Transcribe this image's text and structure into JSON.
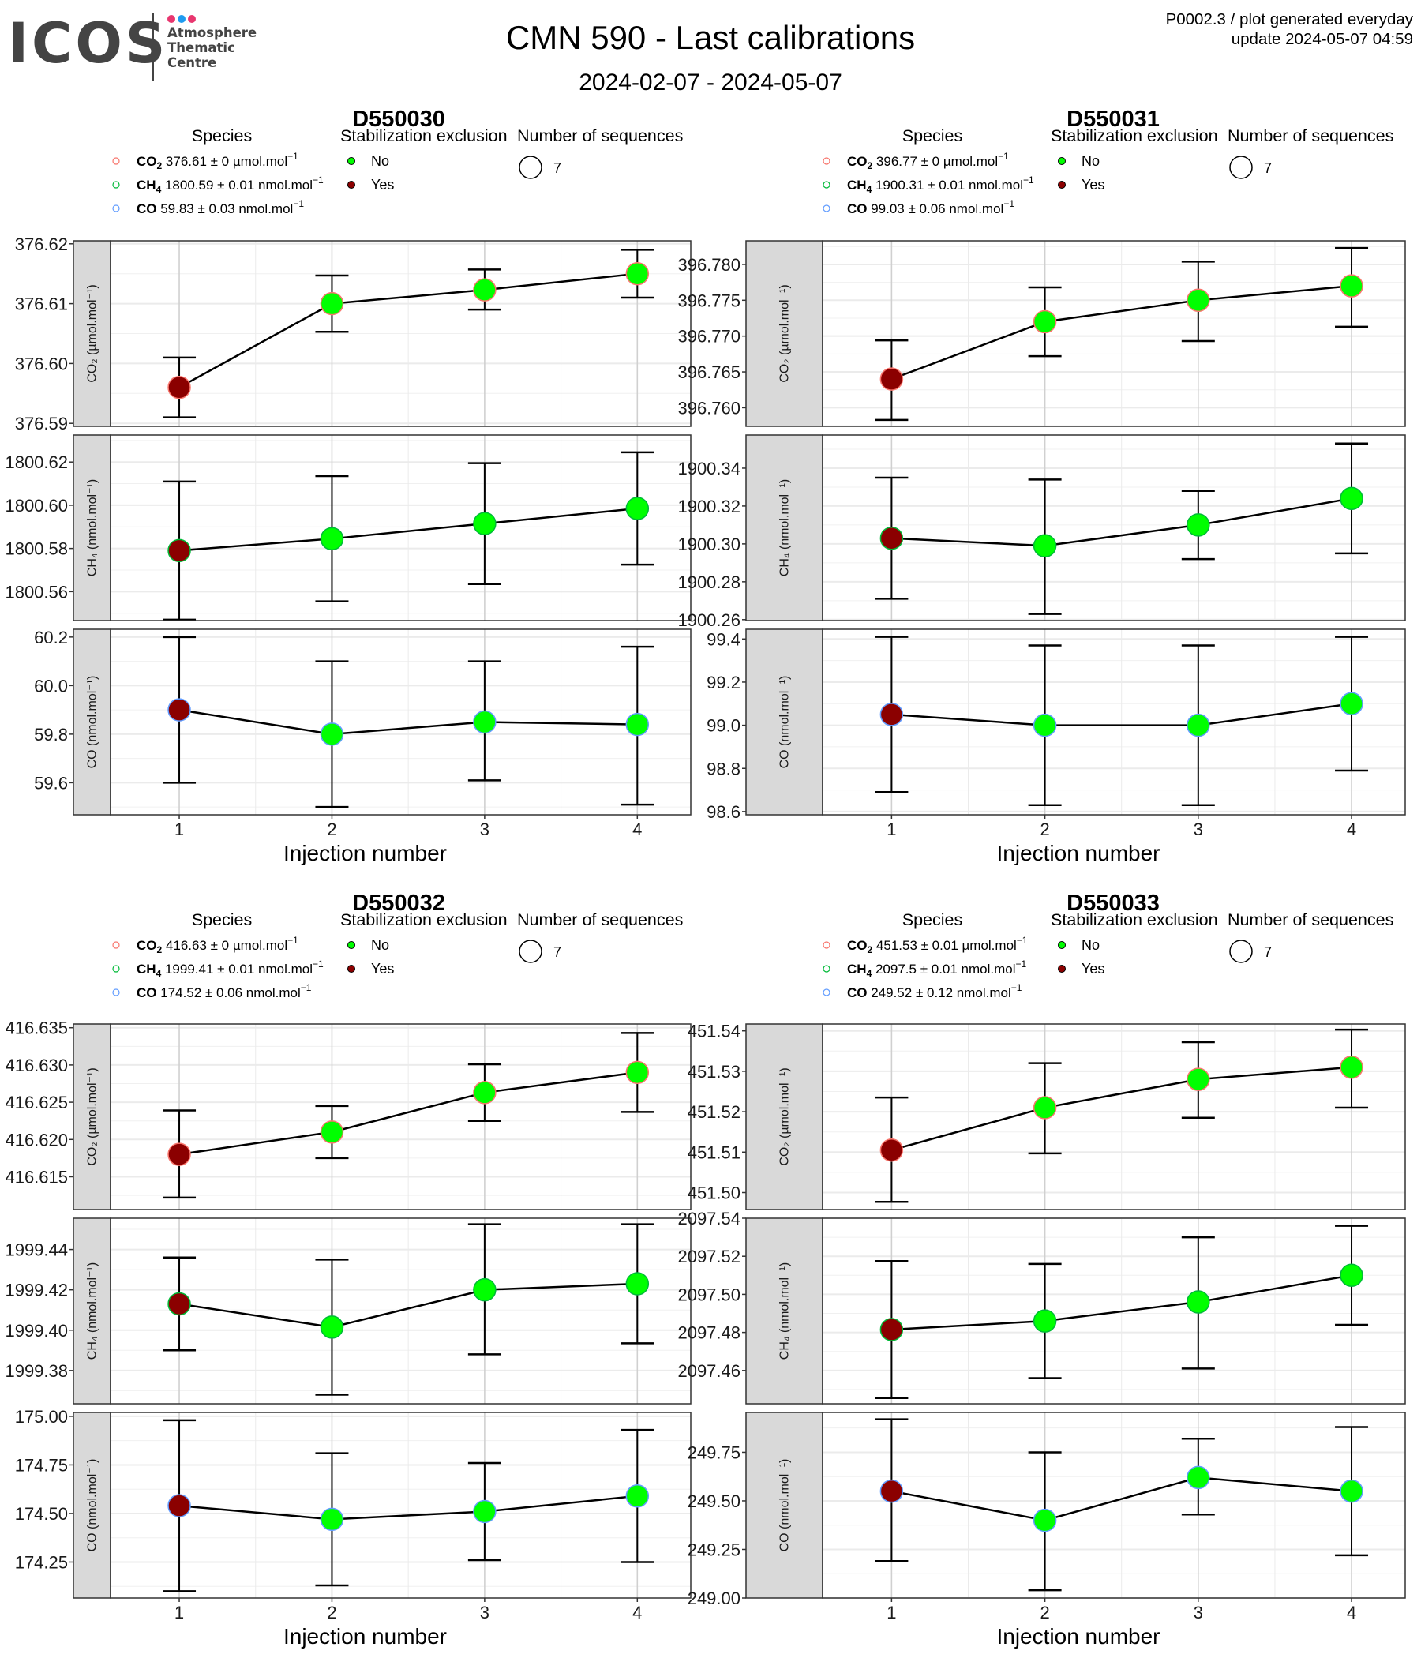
{
  "header": {
    "logo_word": "ICOS",
    "logo_lines": [
      "Atmosphere",
      "Thematic",
      "Centre"
    ],
    "logo_dot_colors": [
      "#e8366f",
      "#1e9bf0",
      "#e8366f"
    ],
    "title": "CMN 590 - Last calibrations",
    "subtitle": "2024-02-07 - 2024-05-07",
    "meta_line1": "P0002.3 / plot generated everyday",
    "meta_line2": "update  2024-05-07 04:59"
  },
  "legend_titles": {
    "species": "Species",
    "stabilization": "Stabilization exclusion",
    "sequences": "Number of sequences"
  },
  "legend_stabilization": [
    {
      "label": "No",
      "color": "#00ff00"
    },
    {
      "label": "Yes",
      "color": "#8b0000"
    }
  ],
  "species_colors": {
    "CO2": "#f8766d",
    "CH4": "#00ba38",
    "CO": "#619cff"
  },
  "xlabel": "Injection number",
  "chart_data": [
    {
      "type": "scatter",
      "title": "D550030",
      "x": [
        1,
        2,
        3,
        4
      ],
      "xlabel": "Injection number",
      "legend": {
        "species": [
          {
            "species": "CO2",
            "name": "CO",
            "sub": "2",
            "text": " 376.61 ± 0 µmol.mol",
            "sup": "−1"
          },
          {
            "species": "CH4",
            "name": "CH",
            "sub": "4",
            "text": " 1800.59 ± 0.01 nmol.mol",
            "sup": "−1"
          },
          {
            "species": "CO",
            "name": "CO",
            "sub": "",
            "text": " 59.83 ± 0.03 nmol.mol",
            "sup": "−1"
          }
        ],
        "sequences": "7"
      },
      "panels": [
        {
          "species": "CO2",
          "ylabel": "CO₂ (µmol.mol⁻¹)",
          "ylim": [
            376.5895,
            376.6205
          ],
          "yticks": [
            376.59,
            376.6,
            376.61,
            376.62
          ],
          "ytick_labels": [
            "376.59",
            "376.60",
            "376.61",
            "376.62"
          ],
          "values": [
            376.596,
            376.61,
            376.6123,
            376.615
          ],
          "err_low": [
            376.591,
            376.6053,
            376.609,
            376.611
          ],
          "err_high": [
            376.601,
            376.6147,
            376.6157,
            376.619
          ],
          "stabilization_excluded": [
            true,
            false,
            false,
            false
          ]
        },
        {
          "species": "CH4",
          "ylabel": "CH₄ (nmol.mol⁻¹)",
          "ylim": [
            1800.5466,
            1800.6325
          ],
          "yticks": [
            1800.56,
            1800.58,
            1800.6,
            1800.62
          ],
          "ytick_labels": [
            "1800.56",
            "1800.58",
            "1800.60",
            "1800.62"
          ],
          "values": [
            1800.579,
            1800.5845,
            1800.5915,
            1800.5985
          ],
          "err_low": [
            1800.547,
            1800.5555,
            1800.5635,
            1800.5725
          ],
          "err_high": [
            1800.611,
            1800.6135,
            1800.6195,
            1800.6245
          ],
          "stabilization_excluded": [
            true,
            false,
            false,
            false
          ]
        },
        {
          "species": "CO",
          "ylabel": "CO (nmol.mol⁻¹)",
          "ylim": [
            59.468,
            60.232
          ],
          "yticks": [
            59.6,
            59.8,
            60.0,
            60.2
          ],
          "ytick_labels": [
            "59.6",
            "59.8",
            "60.0",
            "60.2"
          ],
          "values": [
            59.9,
            59.8,
            59.85,
            59.84
          ],
          "err_low": [
            59.6,
            59.5,
            59.61,
            59.51
          ],
          "err_high": [
            60.2,
            60.1,
            60.1,
            60.16
          ],
          "stabilization_excluded": [
            true,
            false,
            false,
            false
          ]
        }
      ]
    },
    {
      "type": "scatter",
      "title": "D550031",
      "x": [
        1,
        2,
        3,
        4
      ],
      "xlabel": "Injection number",
      "legend": {
        "species": [
          {
            "species": "CO2",
            "name": "CO",
            "sub": "2",
            "text": " 396.77 ± 0 µmol.mol",
            "sup": "−1"
          },
          {
            "species": "CH4",
            "name": "CH",
            "sub": "4",
            "text": " 1900.31 ± 0.01 nmol.mol",
            "sup": "−1"
          },
          {
            "species": "CO",
            "name": "CO",
            "sub": "",
            "text": " 99.03 ± 0.06 nmol.mol",
            "sup": "−1"
          }
        ],
        "sequences": "7"
      },
      "panels": [
        {
          "species": "CO2",
          "ylabel": "CO₂ (µmol.mol⁻¹)",
          "ylim": [
            396.7574,
            396.7833
          ],
          "yticks": [
            396.76,
            396.765,
            396.77,
            396.775,
            396.78
          ],
          "ytick_labels": [
            "396.760",
            "396.765",
            "396.770",
            "396.775",
            "396.780"
          ],
          "values": [
            396.764,
            396.772,
            396.775,
            396.777
          ],
          "err_low": [
            396.7583,
            396.7672,
            396.7693,
            396.7713
          ],
          "err_high": [
            396.7694,
            396.7768,
            396.7804,
            396.7823
          ],
          "stabilization_excluded": [
            true,
            false,
            false,
            false
          ]
        },
        {
          "species": "CH4",
          "ylabel": "CH₄ (nmol.mol⁻¹)",
          "ylim": [
            1900.2595,
            1900.3575
          ],
          "yticks": [
            1900.26,
            1900.28,
            1900.3,
            1900.32,
            1900.34
          ],
          "ytick_labels": [
            "1900.26",
            "1900.28",
            "1900.30",
            "1900.32",
            "1900.34"
          ],
          "values": [
            1900.303,
            1900.299,
            1900.31,
            1900.324
          ],
          "err_low": [
            1900.271,
            1900.263,
            1900.292,
            1900.295
          ],
          "err_high": [
            1900.335,
            1900.334,
            1900.328,
            1900.353
          ],
          "stabilization_excluded": [
            true,
            false,
            false,
            false
          ]
        },
        {
          "species": "CO",
          "ylabel": "CO (nmol.mol⁻¹)",
          "ylim": [
            98.585,
            99.445
          ],
          "yticks": [
            98.6,
            98.8,
            99.0,
            99.2,
            99.4
          ],
          "ytick_labels": [
            "98.6",
            "98.8",
            "99.0",
            "99.2",
            "99.4"
          ],
          "values": [
            99.05,
            99.0,
            99.0,
            99.1
          ],
          "err_low": [
            98.69,
            98.63,
            98.63,
            98.79
          ],
          "err_high": [
            99.41,
            99.37,
            99.37,
            99.41
          ],
          "stabilization_excluded": [
            true,
            false,
            false,
            false
          ]
        }
      ]
    },
    {
      "type": "scatter",
      "title": "D550032",
      "x": [
        1,
        2,
        3,
        4
      ],
      "xlabel": "Injection number",
      "legend": {
        "species": [
          {
            "species": "CO2",
            "name": "CO",
            "sub": "2",
            "text": " 416.63 ± 0 µmol.mol",
            "sup": "−1"
          },
          {
            "species": "CH4",
            "name": "CH",
            "sub": "4",
            "text": " 1999.41 ± 0.01 nmol.mol",
            "sup": "−1"
          },
          {
            "species": "CO",
            "name": "CO",
            "sub": "",
            "text": " 174.52 ± 0.06 nmol.mol",
            "sup": "−1"
          }
        ],
        "sequences": "7"
      },
      "panels": [
        {
          "species": "CO2",
          "ylabel": "CO₂ (µmol.mol⁻¹)",
          "ylim": [
            416.6106,
            416.6355
          ],
          "yticks": [
            416.615,
            416.62,
            416.625,
            416.63,
            416.635
          ],
          "ytick_labels": [
            "416.615",
            "416.620",
            "416.625",
            "416.630",
            "416.635"
          ],
          "values": [
            416.618,
            416.621,
            416.6263,
            416.629
          ],
          "err_low": [
            416.6122,
            416.6175,
            416.6225,
            416.6237
          ],
          "err_high": [
            416.6239,
            416.6245,
            416.6301,
            416.6343
          ],
          "stabilization_excluded": [
            true,
            false,
            false,
            false
          ]
        },
        {
          "species": "CH4",
          "ylabel": "CH₄ (nmol.mol⁻¹)",
          "ylim": [
            1999.3635,
            1999.4555
          ],
          "yticks": [
            1999.38,
            1999.4,
            1999.42,
            1999.44
          ],
          "ytick_labels": [
            "1999.38",
            "1999.40",
            "1999.42",
            "1999.44"
          ],
          "values": [
            1999.413,
            1999.4015,
            1999.42,
            1999.423
          ],
          "err_low": [
            1999.39,
            1999.368,
            1999.388,
            1999.3935
          ],
          "err_high": [
            1999.436,
            1999.435,
            1999.4525,
            1999.4525
          ],
          "stabilization_excluded": [
            true,
            false,
            false,
            false
          ]
        },
        {
          "species": "CO",
          "ylabel": "CO (nmol.mol⁻¹)",
          "ylim": [
            174.065,
            175.02
          ],
          "yticks": [
            174.25,
            174.5,
            174.75,
            175.0
          ],
          "ytick_labels": [
            "174.25",
            "174.50",
            "174.75",
            "175.00"
          ],
          "values": [
            174.54,
            174.47,
            174.51,
            174.59
          ],
          "err_low": [
            174.1,
            174.13,
            174.26,
            174.25
          ],
          "err_high": [
            174.98,
            174.81,
            174.76,
            174.93
          ],
          "stabilization_excluded": [
            true,
            false,
            false,
            false
          ]
        }
      ]
    },
    {
      "type": "scatter",
      "title": "D550033",
      "x": [
        1,
        2,
        3,
        4
      ],
      "xlabel": "Injection number",
      "legend": {
        "species": [
          {
            "species": "CO2",
            "name": "CO",
            "sub": "2",
            "text": " 451.53 ± 0.01 µmol.mol",
            "sup": "−1"
          },
          {
            "species": "CH4",
            "name": "CH",
            "sub": "4",
            "text": " 2097.5 ± 0.01 nmol.mol",
            "sup": "−1"
          },
          {
            "species": "CO",
            "name": "CO",
            "sub": "",
            "text": " 249.52 ± 0.12 nmol.mol",
            "sup": "−1"
          }
        ],
        "sequences": "7"
      },
      "panels": [
        {
          "species": "CO2",
          "ylabel": "CO₂ (µmol.mol⁻¹)",
          "ylim": [
            451.4958,
            451.5417
          ],
          "yticks": [
            451.5,
            451.51,
            451.52,
            451.53,
            451.54
          ],
          "ytick_labels": [
            "451.50",
            "451.51",
            "451.52",
            "451.53",
            "451.54"
          ],
          "values": [
            451.5105,
            451.521,
            451.528,
            451.531
          ],
          "err_low": [
            451.4977,
            451.5097,
            451.5185,
            451.521
          ],
          "err_high": [
            451.5235,
            451.532,
            451.5372,
            451.5403
          ],
          "stabilization_excluded": [
            true,
            false,
            false,
            false
          ]
        },
        {
          "species": "CH4",
          "ylabel": "CH₄ (nmol.mol⁻¹)",
          "ylim": [
            2097.4425,
            2097.54
          ],
          "yticks": [
            2097.46,
            2097.48,
            2097.5,
            2097.52,
            2097.54
          ],
          "ytick_labels": [
            "2097.46",
            "2097.48",
            "2097.50",
            "2097.52",
            "2097.54"
          ],
          "values": [
            2097.4815,
            2097.486,
            2097.496,
            2097.51
          ],
          "err_low": [
            2097.4455,
            2097.456,
            2097.461,
            2097.484
          ],
          "err_high": [
            2097.5175,
            2097.516,
            2097.53,
            2097.536
          ],
          "stabilization_excluded": [
            true,
            false,
            false,
            false
          ]
        },
        {
          "species": "CO",
          "ylabel": "CO (nmol.mol⁻¹)",
          "ylim": [
            249.0,
            249.955
          ],
          "yticks": [
            249.0,
            249.25,
            249.5,
            249.75
          ],
          "ytick_labels": [
            "249.00",
            "249.25",
            "249.50",
            "249.75"
          ],
          "values": [
            249.55,
            249.4,
            249.62,
            249.55
          ],
          "err_low": [
            249.19,
            249.04,
            249.43,
            249.22
          ],
          "err_high": [
            249.92,
            249.75,
            249.82,
            249.88
          ],
          "stabilization_excluded": [
            true,
            false,
            false,
            false
          ]
        }
      ]
    }
  ]
}
